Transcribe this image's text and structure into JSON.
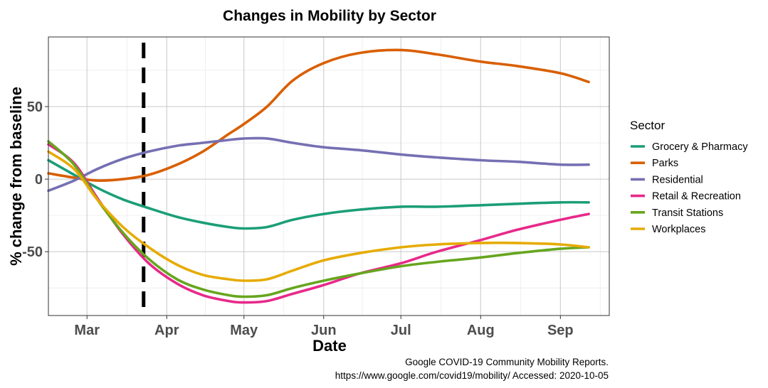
{
  "chart_data": {
    "type": "line",
    "title": "Changes in Mobility by Sector",
    "xlabel": "Date",
    "ylabel": "% change from baseline",
    "x_ticks": [
      "Mar",
      "Apr",
      "May",
      "Jun",
      "Jul",
      "Aug",
      "Sep"
    ],
    "x_tick_dates": [
      "2020-03-01",
      "2020-04-01",
      "2020-05-01",
      "2020-06-01",
      "2020-07-01",
      "2020-08-01",
      "2020-09-01"
    ],
    "xlim": [
      "2020-02-15",
      "2020-09-20"
    ],
    "y_ticks": [
      50,
      0,
      -50
    ],
    "ylim": [
      -94,
      98
    ],
    "grid": true,
    "vline": {
      "x": "2020-03-23",
      "style": "dashed"
    },
    "legend": {
      "title": "Sector",
      "position": "right"
    },
    "x": [
      "2020-02-15",
      "2020-02-25",
      "2020-03-05",
      "2020-03-15",
      "2020-03-25",
      "2020-04-05",
      "2020-04-15",
      "2020-04-25",
      "2020-05-01",
      "2020-05-10",
      "2020-05-20",
      "2020-06-01",
      "2020-06-15",
      "2020-07-01",
      "2020-07-15",
      "2020-08-01",
      "2020-08-15",
      "2020-09-01",
      "2020-09-12"
    ],
    "series": [
      {
        "name": "Grocery & Pharmacy",
        "color": "#1b9e77",
        "values": [
          13,
          3,
          -6,
          -14,
          -20,
          -26,
          -30,
          -33,
          -34,
          -33,
          -28,
          -24,
          -21,
          -19,
          -19,
          -18,
          -17,
          -16,
          -16
        ]
      },
      {
        "name": "Parks",
        "color": "#d95f02",
        "values": [
          4,
          1,
          -1,
          0,
          3,
          10,
          19,
          31,
          38,
          50,
          68,
          80,
          87,
          89,
          86,
          81,
          78,
          73,
          67
        ]
      },
      {
        "name": "Residential",
        "color": "#7570b3",
        "values": [
          -8,
          -1,
          7,
          14,
          19,
          23,
          25,
          27,
          28,
          28,
          25,
          22,
          20,
          17,
          15,
          13,
          12,
          10,
          10
        ]
      },
      {
        "name": "Retail & Recreation",
        "color": "#e7298a",
        "values": [
          24,
          11,
          -13,
          -38,
          -58,
          -72,
          -80,
          -84,
          -85,
          -84,
          -79,
          -73,
          -65,
          -58,
          -50,
          -42,
          -35,
          -28,
          -24
        ]
      },
      {
        "name": "Transit Stations",
        "color": "#66a61e",
        "values": [
          26,
          10,
          -14,
          -37,
          -55,
          -69,
          -76,
          -80,
          -81,
          -80,
          -75,
          -70,
          -65,
          -60,
          -57,
          -54,
          -51,
          -48,
          -47
        ]
      },
      {
        "name": "Workplaces",
        "color": "#e6ab02",
        "values": [
          19,
          7,
          -14,
          -33,
          -47,
          -59,
          -66,
          -69,
          -70,
          -69,
          -63,
          -56,
          -51,
          -47,
          -45,
          -44,
          -44,
          -45,
          -47
        ]
      }
    ],
    "caption_lines": [
      "Google COVID-19 Community Mobility Reports.",
      "https://www.google.com/covid19/mobility/ Accessed: 2020-10-05"
    ]
  }
}
